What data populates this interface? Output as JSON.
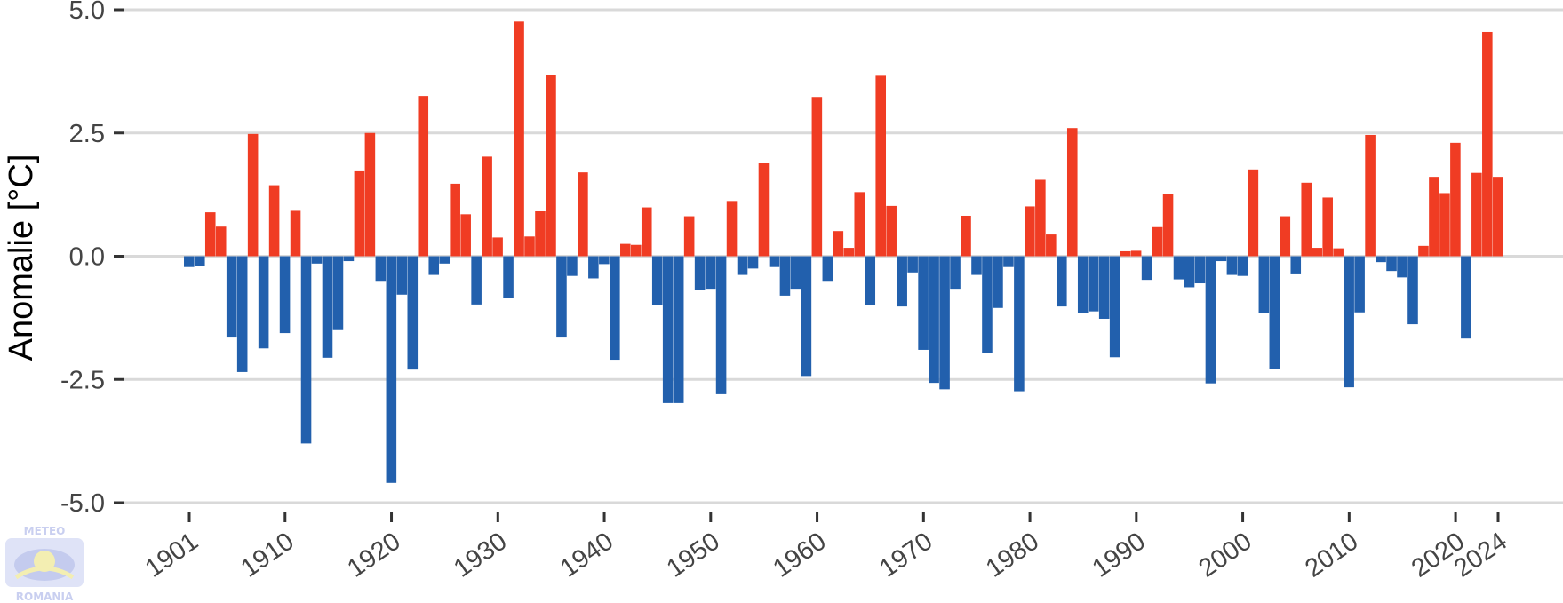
{
  "chart_data": {
    "type": "bar",
    "title": "",
    "xlabel": "",
    "ylabel": "Anomalie [°C]",
    "x": [
      1901,
      1902,
      1903,
      1904,
      1905,
      1906,
      1907,
      1908,
      1909,
      1910,
      1911,
      1912,
      1913,
      1914,
      1915,
      1916,
      1917,
      1918,
      1919,
      1920,
      1921,
      1922,
      1923,
      1924,
      1925,
      1926,
      1927,
      1928,
      1929,
      1930,
      1931,
      1932,
      1933,
      1934,
      1935,
      1936,
      1937,
      1938,
      1939,
      1940,
      1941,
      1942,
      1943,
      1944,
      1945,
      1946,
      1947,
      1948,
      1949,
      1950,
      1951,
      1952,
      1953,
      1954,
      1955,
      1956,
      1957,
      1958,
      1959,
      1960,
      1961,
      1962,
      1963,
      1964,
      1965,
      1966,
      1967,
      1968,
      1969,
      1970,
      1971,
      1972,
      1973,
      1974,
      1975,
      1976,
      1977,
      1978,
      1979,
      1980,
      1981,
      1982,
      1983,
      1984,
      1985,
      1986,
      1987,
      1988,
      1989,
      1990,
      1991,
      1992,
      1993,
      1994,
      1995,
      1996,
      1997,
      1998,
      1999,
      2000,
      2001,
      2002,
      2003,
      2004,
      2005,
      2006,
      2007,
      2008,
      2009,
      2010,
      2011,
      2012,
      2013,
      2014,
      2015,
      2016,
      2017,
      2018,
      2019,
      2020,
      2021,
      2022,
      2023,
      2024
    ],
    "values": [
      -0.22,
      -0.2,
      0.89,
      0.6,
      -1.65,
      -2.35,
      2.48,
      -1.87,
      1.44,
      -1.56,
      0.92,
      -3.8,
      -0.15,
      -2.06,
      -1.5,
      -0.1,
      1.74,
      2.5,
      -0.5,
      -4.6,
      -0.78,
      -2.3,
      3.25,
      -0.38,
      -0.15,
      1.47,
      0.85,
      -0.98,
      2.02,
      0.38,
      -0.85,
      4.76,
      0.4,
      0.91,
      3.68,
      -1.65,
      -0.4,
      1.7,
      -0.45,
      -0.16,
      -2.1,
      0.25,
      0.23,
      0.99,
      -1.0,
      -2.98,
      -2.98,
      0.81,
      -0.68,
      -0.66,
      -2.8,
      1.12,
      -0.38,
      -0.25,
      1.89,
      -0.22,
      -0.8,
      -0.66,
      -2.43,
      3.23,
      -0.5,
      0.51,
      0.17,
      1.3,
      -1.0,
      3.66,
      1.02,
      -1.02,
      -0.33,
      -1.9,
      -2.57,
      -2.7,
      -0.66,
      0.82,
      -0.38,
      -1.97,
      -1.05,
      -0.22,
      -2.74,
      1.01,
      1.55,
      0.44,
      -1.02,
      2.6,
      -1.15,
      -1.12,
      -1.27,
      -2.05,
      0.1,
      0.11,
      -0.48,
      0.59,
      1.27,
      -0.47,
      -0.63,
      -0.55,
      -2.58,
      -0.1,
      -0.38,
      -0.4,
      1.76,
      -1.15,
      -2.28,
      0.81,
      -0.35,
      1.49,
      0.17,
      1.19,
      0.16,
      -2.66,
      -1.14,
      2.46,
      -0.12,
      -0.3,
      -0.43,
      -1.38,
      0.21,
      1.61,
      1.28,
      2.3,
      -1.67,
      1.69,
      4.55,
      1.61
    ],
    "ylim": [
      -5.0,
      5.0
    ],
    "y_ticks": [
      5.0,
      2.5,
      0.0,
      -2.5,
      -5.0
    ],
    "y_tick_labels": [
      "5.0",
      "2.5",
      "0.0",
      "-2.5",
      "-5.0"
    ],
    "x_ticks": [
      1901,
      1910,
      1920,
      1930,
      1940,
      1950,
      1960,
      1970,
      1980,
      1990,
      2000,
      2010,
      2020,
      2024
    ],
    "grid": "horizontal",
    "legend": "none",
    "colors": {
      "positive": "#f03c23",
      "negative": "#2260ad",
      "grid": "#d9d9d9",
      "axis_text": "#444444"
    }
  },
  "logo": {
    "text_top": "METEO",
    "text_bottom": "ROMANIA"
  }
}
